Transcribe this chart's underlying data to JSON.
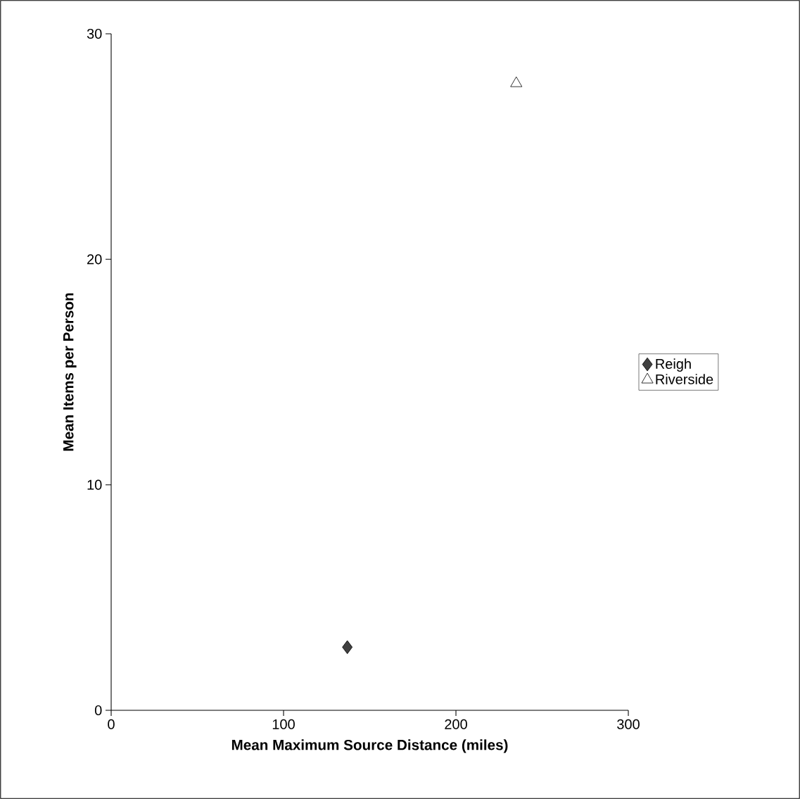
{
  "chart_data": {
    "type": "scatter",
    "xlabel": "Mean Maximum Source Distance (miles)",
    "ylabel": "Mean Items per Person",
    "xlim": [
      0,
      300
    ],
    "xticks": [
      0,
      100,
      200,
      300
    ],
    "ylim": [
      0,
      30
    ],
    "yticks": [
      0,
      10,
      20,
      30
    ],
    "grid": false,
    "legend": "right",
    "series": [
      {
        "name": "Reigh",
        "color": "#404040",
        "marker": "diamond",
        "x": [
          137
        ],
        "values": [
          2.8
        ]
      },
      {
        "name": "Riverside",
        "color": "#ffffff",
        "marker": "triangle",
        "x": [
          235
        ],
        "values": [
          27.8
        ]
      }
    ]
  }
}
